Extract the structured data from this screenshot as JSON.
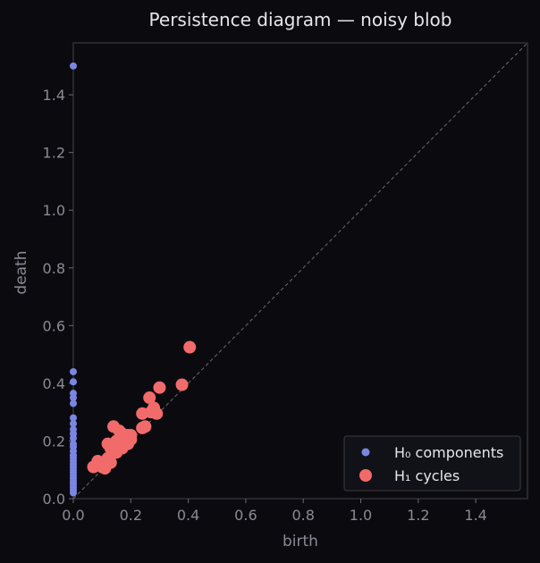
{
  "chart_data": {
    "type": "scatter",
    "title": "Persistence diagram — noisy blob",
    "xlabel": "birth",
    "ylabel": "death",
    "xlim": [
      0,
      1.58
    ],
    "ylim": [
      0,
      1.58
    ],
    "xticks": [
      "0.0",
      "0.2",
      "0.4",
      "0.6",
      "0.8",
      "1.0",
      "1.2",
      "1.4"
    ],
    "yticks": [
      "0.0",
      "0.2",
      "0.4",
      "0.6",
      "0.8",
      "1.0",
      "1.2",
      "1.4"
    ],
    "grid": false,
    "diagonal": true,
    "legend_position": "bottom-right",
    "colors": {
      "background": "#0b0b0f",
      "axes": "#3a3a42",
      "h0": "#7b86e2",
      "h1": "#f26b6b",
      "diagonal": "#6a6a72"
    },
    "series": [
      {
        "name": "H₀ components",
        "color": "#7b86e2",
        "marker": "small",
        "points": [
          [
            0,
            1.5
          ],
          [
            0,
            0.44
          ],
          [
            0,
            0.405
          ],
          [
            0,
            0.365
          ],
          [
            0,
            0.35
          ],
          [
            0,
            0.33
          ],
          [
            0,
            0.28
          ],
          [
            0,
            0.26
          ],
          [
            0,
            0.24
          ],
          [
            0,
            0.225
          ],
          [
            0,
            0.21
          ],
          [
            0,
            0.19
          ],
          [
            0,
            0.18
          ],
          [
            0,
            0.165
          ],
          [
            0,
            0.15
          ],
          [
            0,
            0.14
          ],
          [
            0,
            0.13
          ],
          [
            0,
            0.12
          ],
          [
            0,
            0.11
          ],
          [
            0,
            0.1
          ],
          [
            0,
            0.09
          ],
          [
            0,
            0.08
          ],
          [
            0,
            0.07
          ],
          [
            0,
            0.06
          ],
          [
            0,
            0.05
          ],
          [
            0,
            0.04
          ],
          [
            0,
            0.03
          ],
          [
            0,
            0.02
          ]
        ]
      },
      {
        "name": "H₁ cycles",
        "color": "#f26b6b",
        "marker": "large",
        "points": [
          [
            0.405,
            0.525
          ],
          [
            0.3,
            0.385
          ],
          [
            0.378,
            0.395
          ],
          [
            0.265,
            0.35
          ],
          [
            0.28,
            0.315
          ],
          [
            0.27,
            0.3
          ],
          [
            0.29,
            0.295
          ],
          [
            0.24,
            0.295
          ],
          [
            0.24,
            0.245
          ],
          [
            0.25,
            0.25
          ],
          [
            0.14,
            0.25
          ],
          [
            0.16,
            0.235
          ],
          [
            0.17,
            0.225
          ],
          [
            0.19,
            0.22
          ],
          [
            0.2,
            0.22
          ],
          [
            0.18,
            0.215
          ],
          [
            0.2,
            0.205
          ],
          [
            0.15,
            0.2
          ],
          [
            0.19,
            0.19
          ],
          [
            0.12,
            0.19
          ],
          [
            0.13,
            0.175
          ],
          [
            0.17,
            0.175
          ],
          [
            0.14,
            0.165
          ],
          [
            0.15,
            0.16
          ],
          [
            0.12,
            0.14
          ],
          [
            0.13,
            0.125
          ],
          [
            0.1,
            0.11
          ],
          [
            0.085,
            0.13
          ],
          [
            0.07,
            0.11
          ],
          [
            0.11,
            0.105
          ]
        ]
      }
    ]
  }
}
